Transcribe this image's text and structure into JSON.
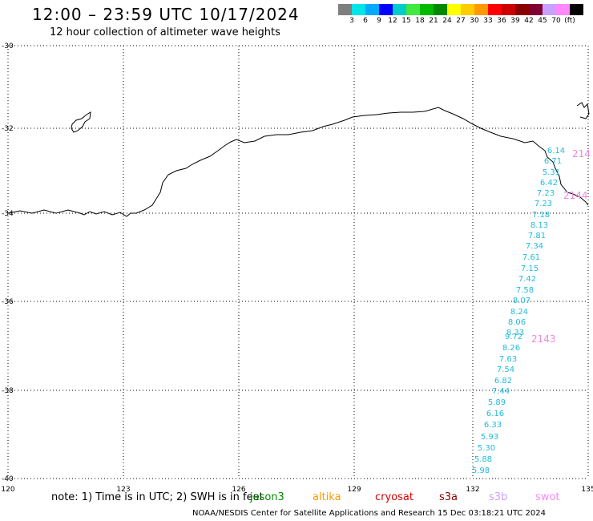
{
  "header": {
    "title": "12:00 – 23:59 UTC 10/17/2024",
    "subtitle": "12 hour collection of altimeter wave heights"
  },
  "colorbar": {
    "colors": [
      "#7f7f7f",
      "#00e5e5",
      "#00aaff",
      "#0000ff",
      "#00cccc",
      "#40e840",
      "#00bb00",
      "#008800",
      "#ffff00",
      "#ffcc00",
      "#ff9900",
      "#ff0000",
      "#cc0000",
      "#880000",
      "#7f0033",
      "#c8a0ff",
      "#ff88ff",
      "#000000"
    ],
    "labels": [
      "3",
      "6",
      "9",
      "12",
      "15",
      "18",
      "21",
      "24",
      "27",
      "30",
      "33",
      "36",
      "39",
      "42",
      "45",
      "70",
      "(ft)"
    ]
  },
  "map": {
    "lon_labels": [
      "120",
      "123",
      "126",
      "129",
      "132",
      "135"
    ],
    "lat_labels": [
      "-30",
      "-32",
      "-34",
      "-36",
      "-38",
      "-40"
    ]
  },
  "track": {
    "color": "#22bbdd",
    "heights": [
      "6.14",
      "6.71",
      "5.31",
      "6.42",
      "7.23",
      "7.23",
      "7.18",
      "8.13",
      "7.81",
      "7.34",
      "7.61",
      "7.15",
      "7.42",
      "7.58",
      "8.07",
      "8.24",
      "8.06",
      "8.33",
      "9.72",
      "8.26",
      "7.63",
      "7.54",
      "6.82",
      "7.44",
      "5.89",
      "6.16",
      "6.33",
      "5.93",
      "5.30",
      "5.88",
      "5.98"
    ],
    "time_labels": [
      "214",
      "2144",
      "2143"
    ],
    "time_color": "#ee88dd"
  },
  "footer": {
    "note": "note: 1) Time is in UTC; 2) SWH is in feet",
    "legend": [
      {
        "name": "jason3",
        "color": "#008800"
      },
      {
        "name": "altika",
        "color": "#ff9900"
      },
      {
        "name": "cryosat",
        "color": "#dd0000"
      },
      {
        "name": "s3a",
        "color": "#880000"
      },
      {
        "name": "s3b",
        "color": "#c8a0ff"
      },
      {
        "name": "swot",
        "color": "#ff88ff"
      }
    ],
    "credit": "NOAA/NESDIS Center for Satellite Applications and Research     15 Dec 03:18:21 UTC 2024"
  }
}
